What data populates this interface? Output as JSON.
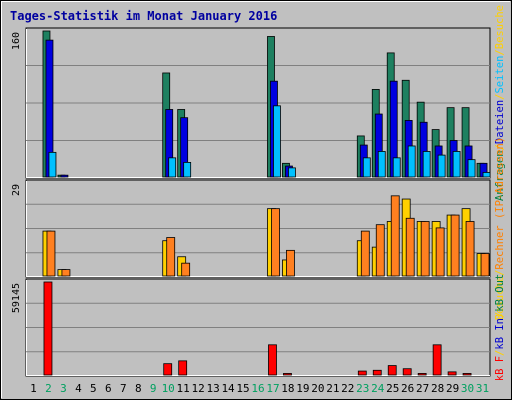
{
  "chart_data": {
    "type": "bar",
    "title": "Tages-Statistik im Monat January 2016",
    "days": [
      "1",
      "2",
      "3",
      "4",
      "5",
      "6",
      "7",
      "8",
      "9",
      "10",
      "11",
      "12",
      "13",
      "14",
      "15",
      "16",
      "17",
      "18",
      "19",
      "20",
      "21",
      "22",
      "23",
      "24",
      "25",
      "26",
      "27",
      "28",
      "29",
      "30",
      "31"
    ],
    "weekend_days": [
      "2",
      "3",
      "9",
      "10",
      "16",
      "17",
      "23",
      "24",
      "30",
      "31"
    ],
    "panels": [
      {
        "id": "top",
        "ymax": 160,
        "ymax_label": "160",
        "right_label_parts": [
          {
            "text": "Anfragen",
            "color": "#008040"
          },
          {
            "text": "/",
            "color": "#ffd000"
          },
          {
            "text": "Dateien",
            "color": "#0000d0"
          },
          {
            "text": "/",
            "color": "#ffd000"
          },
          {
            "text": "Seiten",
            "color": "#00c0ff"
          },
          {
            "text": "/",
            "color": "#ffd000"
          },
          {
            "text": "Besuche",
            "color": "#ffd000"
          }
        ],
        "series": [
          {
            "name": "Anfragen",
            "color": "#1e8060",
            "values": [
              0,
              160,
              2,
              0,
              0,
              0,
              0,
              0,
              0,
              114,
              74,
              0,
              0,
              0,
              0,
              0,
              154,
              15,
              0,
              0,
              0,
              0,
              45,
              96,
              136,
              106,
              82,
              52,
              76,
              76,
              15
            ]
          },
          {
            "name": "Dateien",
            "color": "#0000e0",
            "values": [
              0,
              150,
              2,
              0,
              0,
              0,
              0,
              0,
              0,
              74,
              65,
              0,
              0,
              0,
              0,
              0,
              105,
              12,
              0,
              0,
              0,
              0,
              35,
              69,
              105,
              62,
              60,
              34,
              40,
              34,
              15
            ]
          },
          {
            "name": "Seiten",
            "color": "#00c0ff",
            "values": [
              0,
              27,
              0,
              0,
              0,
              0,
              0,
              0,
              0,
              21,
              16,
              0,
              0,
              0,
              0,
              0,
              78,
              10,
              0,
              0,
              0,
              0,
              21,
              28,
              21,
              34,
              28,
              24,
              28,
              19,
              5
            ]
          }
        ]
      },
      {
        "id": "middle",
        "ymax": 29,
        "ymax_label": "29",
        "right_label_parts": [
          {
            "text": "Besuche",
            "color": "#ffd000"
          },
          {
            "text": "/",
            "color": "#ffd000"
          },
          {
            "text": "Rechner (IP-Adressen)",
            "color": "#ff8000"
          }
        ],
        "series": [
          {
            "name": "Besuche",
            "color": "#ffd000",
            "values": [
              0,
              14,
              2,
              0,
              0,
              0,
              0,
              0,
              0,
              11,
              6,
              0,
              0,
              0,
              0,
              0,
              21,
              5,
              0,
              0,
              0,
              0,
              11,
              9,
              17,
              24,
              17,
              17,
              19,
              21,
              7
            ]
          },
          {
            "name": "Rechner (IP-Adressen)",
            "color": "#ff8020",
            "values": [
              0,
              14,
              2,
              0,
              0,
              0,
              0,
              0,
              0,
              12,
              4,
              0,
              0,
              0,
              0,
              0,
              21,
              8,
              0,
              0,
              0,
              0,
              14,
              16,
              25,
              18,
              17,
              15,
              19,
              17,
              7
            ]
          }
        ]
      },
      {
        "id": "bottom",
        "ymax": 59145,
        "ymax_label": "59145",
        "right_label_parts": [
          {
            "text": "kB F",
            "color": "#ff0000"
          },
          {
            "text": "/",
            "color": "#ffd000"
          },
          {
            "text": "kB In",
            "color": "#0000d0"
          },
          {
            "text": "/",
            "color": "#ffd000"
          },
          {
            "text": "kB Out",
            "color": "#008040"
          }
        ],
        "series": [
          {
            "name": "kB F",
            "color": "#ff0000",
            "values": [
              0,
              59145,
              0,
              0,
              0,
              0,
              0,
              0,
              0,
              7200,
              9000,
              0,
              0,
              0,
              0,
              0,
              19200,
              1000,
              0,
              0,
              0,
              0,
              2500,
              3000,
              6000,
              4000,
              1000,
              19200,
              2000,
              1000,
              0
            ]
          }
        ]
      }
    ]
  }
}
